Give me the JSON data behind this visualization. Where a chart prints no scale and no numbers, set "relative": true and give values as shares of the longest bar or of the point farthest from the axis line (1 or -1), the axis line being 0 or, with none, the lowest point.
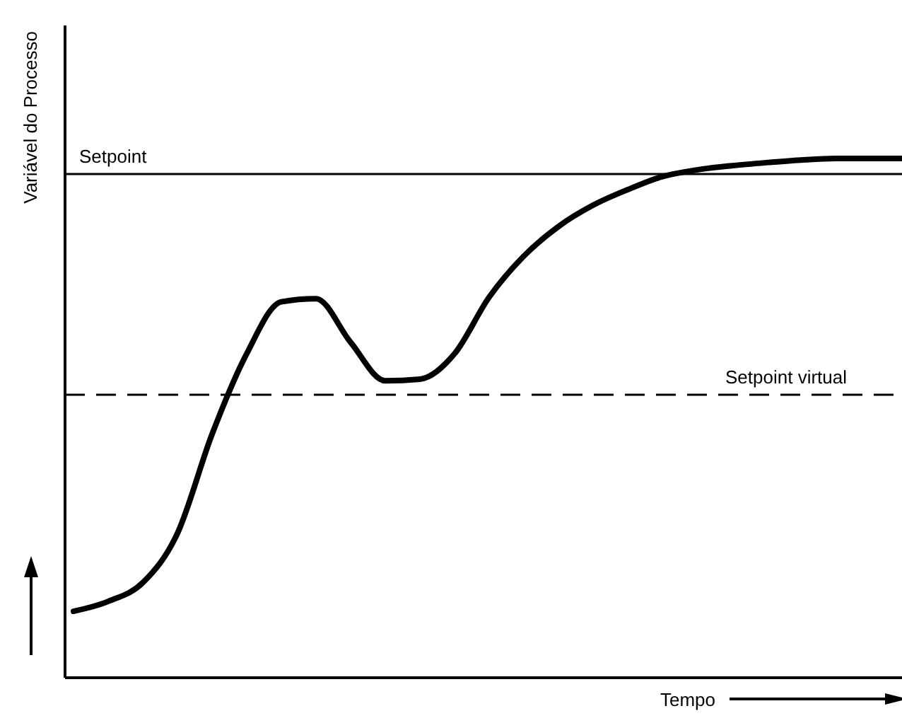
{
  "chart_data": {
    "type": "line",
    "relative": true,
    "xlabel": "Tempo",
    "ylabel": "Variável do Processo",
    "categories": [
      null,
      null,
      null,
      null,
      null,
      null,
      null,
      null,
      null,
      null,
      null,
      null,
      null,
      null,
      null,
      null,
      null,
      null,
      null,
      null,
      null,
      null,
      null,
      null,
      null
    ],
    "series": [
      {
        "color": "#000000",
        "values": [
          0.128,
          0.147,
          0.183,
          0.278,
          0.469,
          0.624,
          0.724,
          0.73,
          0.646,
          0.572,
          0.575,
          0.624,
          0.733,
          0.812,
          0.869,
          0.91,
          0.94,
          0.965,
          0.978,
          0.986,
          0.992,
          0.997,
          1,
          1,
          1
        ]
      }
    ],
    "ref_lines": [
      {
        "axis": "y",
        "value": 0.97,
        "label": "Setpoint",
        "color": "#000000",
        "line_style": "solid"
      },
      {
        "axis": "y",
        "value": 0.545,
        "label": "Setpoint virtual",
        "color": "#000000",
        "line_style": "dashed"
      }
    ],
    "marker": "none",
    "line_style": "solid"
  }
}
